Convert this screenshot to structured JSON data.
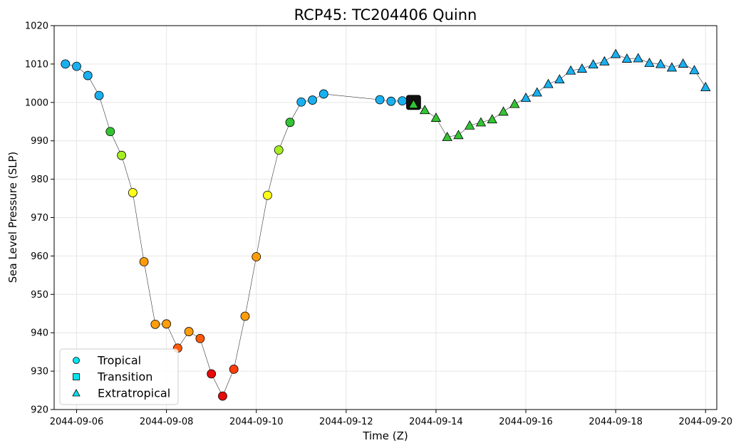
{
  "chart_data": {
    "type": "scatter",
    "title": "RCP45: TC204406 Quinn",
    "xlabel": "Time (Z)",
    "ylabel": "Sea Level Pressure (SLP)",
    "xlim": [
      "2044-09-05 12:00",
      "2044-09-20 06:00"
    ],
    "ylim": [
      920,
      1020
    ],
    "x_ticks": [
      "2044-09-06",
      "2044-09-08",
      "2044-09-10",
      "2044-09-12",
      "2044-09-14",
      "2044-09-16",
      "2044-09-18",
      "2044-09-20"
    ],
    "y_ticks": [
      920,
      930,
      940,
      950,
      960,
      970,
      980,
      990,
      1000,
      1010,
      1020
    ],
    "grid": true,
    "legend_position": "lower-left",
    "legend": [
      {
        "label": "Tropical",
        "marker": "circle"
      },
      {
        "label": "Transition",
        "marker": "square"
      },
      {
        "label": "Extratropical",
        "marker": "triangle"
      }
    ],
    "legend_color": "#00e5ee",
    "points": [
      {
        "time": "2044-09-05 18:00",
        "slp": 1010.0,
        "phase": "Tropical",
        "color": "#1ab0f0"
      },
      {
        "time": "2044-09-06 00:00",
        "slp": 1009.4,
        "phase": "Tropical",
        "color": "#1ab0f0"
      },
      {
        "time": "2044-09-06 06:00",
        "slp": 1007.0,
        "phase": "Tropical",
        "color": "#1ab0f0"
      },
      {
        "time": "2044-09-06 12:00",
        "slp": 1001.8,
        "phase": "Tropical",
        "color": "#1ab0f0"
      },
      {
        "time": "2044-09-06 18:00",
        "slp": 992.4,
        "phase": "Tropical",
        "color": "#33c433"
      },
      {
        "time": "2044-09-07 00:00",
        "slp": 986.2,
        "phase": "Tropical",
        "color": "#a6ee22"
      },
      {
        "time": "2044-09-07 06:00",
        "slp": 976.5,
        "phase": "Tropical",
        "color": "#ffff1a"
      },
      {
        "time": "2044-09-07 12:00",
        "slp": 958.5,
        "phase": "Tropical",
        "color": "#ff9d0a"
      },
      {
        "time": "2044-09-07 18:00",
        "slp": 942.2,
        "phase": "Tropical",
        "color": "#ff9d0a"
      },
      {
        "time": "2044-09-08 00:00",
        "slp": 942.3,
        "phase": "Tropical",
        "color": "#ff9d0a"
      },
      {
        "time": "2044-09-08 06:00",
        "slp": 936.0,
        "phase": "Tropical",
        "color": "#ff5a0a"
      },
      {
        "time": "2044-09-08 12:00",
        "slp": 940.3,
        "phase": "Tropical",
        "color": "#ff9d0a"
      },
      {
        "time": "2044-09-08 18:00",
        "slp": 938.5,
        "phase": "Tropical",
        "color": "#ff5a0a"
      },
      {
        "time": "2044-09-09 00:00",
        "slp": 929.3,
        "phase": "Tropical",
        "color": "#e60a0a"
      },
      {
        "time": "2044-09-09 06:00",
        "slp": 923.5,
        "phase": "Tropical",
        "color": "#e60a0a"
      },
      {
        "time": "2044-09-09 12:00",
        "slp": 930.5,
        "phase": "Tropical",
        "color": "#ff3d0a"
      },
      {
        "time": "2044-09-09 18:00",
        "slp": 944.3,
        "phase": "Tropical",
        "color": "#ff9d0a"
      },
      {
        "time": "2044-09-10 00:00",
        "slp": 959.8,
        "phase": "Tropical",
        "color": "#ff9d0a"
      },
      {
        "time": "2044-09-10 06:00",
        "slp": 975.8,
        "phase": "Tropical",
        "color": "#ffff1a"
      },
      {
        "time": "2044-09-10 12:00",
        "slp": 987.6,
        "phase": "Tropical",
        "color": "#a6ee22"
      },
      {
        "time": "2044-09-10 18:00",
        "slp": 994.8,
        "phase": "Tropical",
        "color": "#33c433"
      },
      {
        "time": "2044-09-11 00:00",
        "slp": 1000.1,
        "phase": "Tropical",
        "color": "#1ab0f0"
      },
      {
        "time": "2044-09-11 06:00",
        "slp": 1000.6,
        "phase": "Tropical",
        "color": "#1ab0f0"
      },
      {
        "time": "2044-09-11 12:00",
        "slp": 1002.2,
        "phase": "Tropical",
        "color": "#1ab0f0"
      },
      {
        "time": "2044-09-12 18:00",
        "slp": 1000.7,
        "phase": "Tropical",
        "color": "#1ab0f0"
      },
      {
        "time": "2044-09-13 00:00",
        "slp": 1000.3,
        "phase": "Tropical",
        "color": "#1ab0f0"
      },
      {
        "time": "2044-09-13 06:00",
        "slp": 1000.4,
        "phase": "Tropical",
        "color": "#1ab0f0"
      },
      {
        "time": "2044-09-13 12:00",
        "slp": 1000.0,
        "phase": "Transition",
        "color": "#111111"
      },
      {
        "time": "2044-09-13 12:00",
        "slp": 999.5,
        "phase": "Extratropical",
        "color": "#33c433"
      },
      {
        "time": "2044-09-13 18:00",
        "slp": 998.0,
        "phase": "Extratropical",
        "color": "#33c433"
      },
      {
        "time": "2044-09-14 00:00",
        "slp": 996.0,
        "phase": "Extratropical",
        "color": "#33c433"
      },
      {
        "time": "2044-09-14 06:00",
        "slp": 991.0,
        "phase": "Extratropical",
        "color": "#33c433"
      },
      {
        "time": "2044-09-14 12:00",
        "slp": 991.5,
        "phase": "Extratropical",
        "color": "#33c433"
      },
      {
        "time": "2044-09-14 18:00",
        "slp": 994.0,
        "phase": "Extratropical",
        "color": "#33c433"
      },
      {
        "time": "2044-09-15 00:00",
        "slp": 994.8,
        "phase": "Extratropical",
        "color": "#33c433"
      },
      {
        "time": "2044-09-15 06:00",
        "slp": 995.6,
        "phase": "Extratropical",
        "color": "#33c433"
      },
      {
        "time": "2044-09-15 12:00",
        "slp": 997.6,
        "phase": "Extratropical",
        "color": "#33c433"
      },
      {
        "time": "2044-09-15 18:00",
        "slp": 999.6,
        "phase": "Extratropical",
        "color": "#33c433"
      },
      {
        "time": "2044-09-16 00:00",
        "slp": 1001.2,
        "phase": "Extratropical",
        "color": "#1ab0f0"
      },
      {
        "time": "2044-09-16 06:00",
        "slp": 1002.6,
        "phase": "Extratropical",
        "color": "#1ab0f0"
      },
      {
        "time": "2044-09-16 12:00",
        "slp": 1004.8,
        "phase": "Extratropical",
        "color": "#1ab0f0"
      },
      {
        "time": "2044-09-16 18:00",
        "slp": 1006.0,
        "phase": "Extratropical",
        "color": "#1ab0f0"
      },
      {
        "time": "2044-09-17 00:00",
        "slp": 1008.3,
        "phase": "Extratropical",
        "color": "#1ab0f0"
      },
      {
        "time": "2044-09-17 06:00",
        "slp": 1008.8,
        "phase": "Extratropical",
        "color": "#1ab0f0"
      },
      {
        "time": "2044-09-17 12:00",
        "slp": 1009.9,
        "phase": "Extratropical",
        "color": "#1ab0f0"
      },
      {
        "time": "2044-09-17 18:00",
        "slp": 1010.7,
        "phase": "Extratropical",
        "color": "#1ab0f0"
      },
      {
        "time": "2044-09-18 00:00",
        "slp": 1012.6,
        "phase": "Extratropical",
        "color": "#1ab0f0"
      },
      {
        "time": "2044-09-18 06:00",
        "slp": 1011.4,
        "phase": "Extratropical",
        "color": "#1ab0f0"
      },
      {
        "time": "2044-09-18 12:00",
        "slp": 1011.5,
        "phase": "Extratropical",
        "color": "#1ab0f0"
      },
      {
        "time": "2044-09-18 18:00",
        "slp": 1010.3,
        "phase": "Extratropical",
        "color": "#1ab0f0"
      },
      {
        "time": "2044-09-19 00:00",
        "slp": 1010.0,
        "phase": "Extratropical",
        "color": "#1ab0f0"
      },
      {
        "time": "2044-09-19 06:00",
        "slp": 1009.1,
        "phase": "Extratropical",
        "color": "#1ab0f0"
      },
      {
        "time": "2044-09-19 12:00",
        "slp": 1010.1,
        "phase": "Extratropical",
        "color": "#1ab0f0"
      },
      {
        "time": "2044-09-19 18:00",
        "slp": 1008.4,
        "phase": "Extratropical",
        "color": "#1ab0f0"
      },
      {
        "time": "2044-09-20 00:00",
        "slp": 1004.0,
        "phase": "Extratropical",
        "color": "#1ab0f0"
      }
    ]
  }
}
